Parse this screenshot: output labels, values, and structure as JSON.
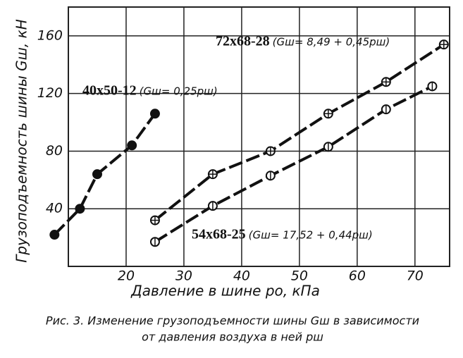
{
  "chart_data": {
    "type": "line",
    "y_label": "Грузоподъемность шины Gш, кН",
    "x_label": "Давление в шине pо,  кПа",
    "caption": [
      "Рис. 3. Изменение грузоподъемности шины Gш в зависимости",
      "от давления воздуха в ней pш"
    ],
    "xlim": [
      10,
      76
    ],
    "ylim": [
      0,
      180
    ],
    "xticks": [
      20,
      30,
      40,
      50,
      60,
      70
    ],
    "yticks": [
      40,
      80,
      120,
      160
    ],
    "grid": true,
    "series": [
      {
        "name": "40x50-12",
        "formula": "(Gш= 0,25pш)",
        "color": "#111111",
        "marker": "dot",
        "x": [
          7.6,
          12,
          15,
          21,
          25
        ],
        "values": [
          22,
          40,
          64,
          84,
          106
        ]
      },
      {
        "name": "72x68-28",
        "formula": "(Gш= 8,49 + 0,45pш)",
        "color": "#111111",
        "marker": "plus",
        "x": [
          25,
          35,
          45,
          55,
          65,
          75
        ],
        "values": [
          32,
          64,
          80,
          106,
          128,
          154
        ]
      },
      {
        "name": "54x68-25",
        "formula": "(Gш= 17,52 + 0,44pш)",
        "color": "#111111",
        "marker": "bar",
        "x": [
          25,
          35,
          45,
          55,
          65,
          73
        ],
        "values": [
          17,
          42,
          63,
          83,
          109,
          125
        ]
      }
    ]
  }
}
